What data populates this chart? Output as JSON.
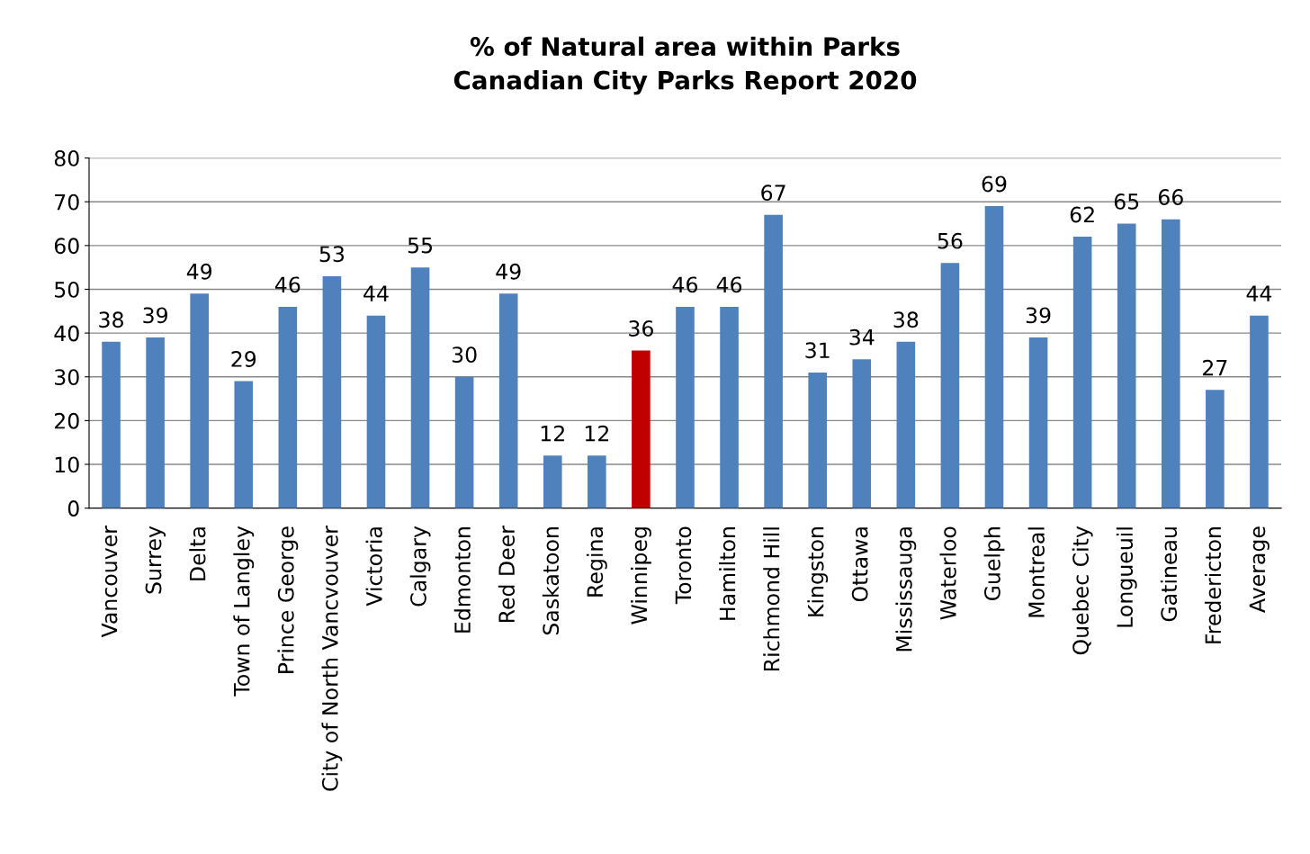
{
  "chart_data": {
    "type": "bar",
    "title": "% of Natural area within Parks\nCanadian City Parks Report 2020",
    "categories": [
      "Vancouver",
      "Surrey",
      "Delta",
      "Town of Langley",
      "Prince George",
      "City of North Vancvouver",
      "Victoria",
      "Calgary",
      "Edmonton",
      "Red Deer",
      "Saskatoon",
      "Regina",
      "Winnipeg",
      "Toronto",
      "Hamilton",
      "Richmond Hill",
      "Kingston",
      "Ottawa",
      "Mississauga",
      "Waterloo",
      "Guelph",
      "Montreal",
      "Quebec City",
      "Longueuil",
      "Gatineau",
      "Fredericton",
      "Average"
    ],
    "values": [
      38,
      39,
      49,
      29,
      46,
      53,
      44,
      55,
      30,
      49,
      12,
      12,
      36,
      46,
      46,
      67,
      31,
      34,
      38,
      56,
      69,
      39,
      62,
      65,
      66,
      27,
      44
    ],
    "colors": [
      "#4f81bd",
      "#4f81bd",
      "#4f81bd",
      "#4f81bd",
      "#4f81bd",
      "#4f81bd",
      "#4f81bd",
      "#4f81bd",
      "#4f81bd",
      "#4f81bd",
      "#4f81bd",
      "#4f81bd",
      "#c00000",
      "#4f81bd",
      "#4f81bd",
      "#4f81bd",
      "#4f81bd",
      "#4f81bd",
      "#4f81bd",
      "#4f81bd",
      "#4f81bd",
      "#4f81bd",
      "#4f81bd",
      "#4f81bd",
      "#4f81bd",
      "#4f81bd",
      "#4f81bd"
    ],
    "ylim": [
      0,
      80
    ],
    "yticks": [
      0,
      10,
      20,
      30,
      40,
      50,
      60,
      70,
      80
    ],
    "grid": "y",
    "data_labels": true
  }
}
